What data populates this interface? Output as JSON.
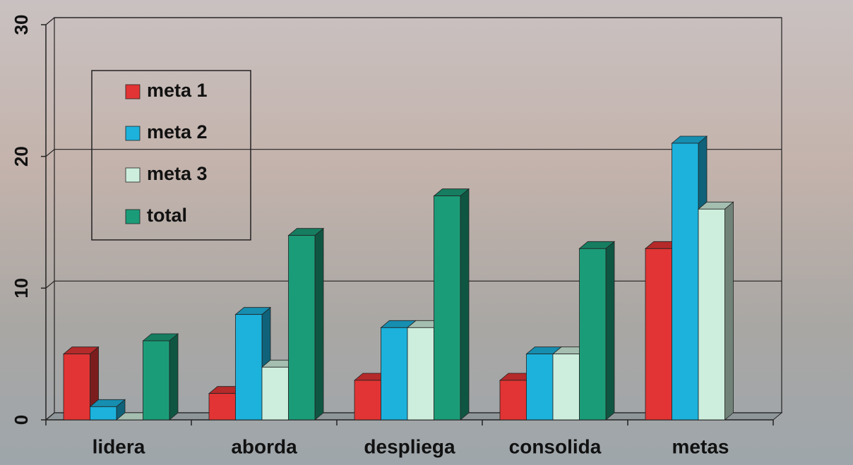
{
  "chart_data": {
    "type": "bar3d",
    "categories": [
      "lidera",
      "aborda",
      "despliega",
      "consolida",
      "metas"
    ],
    "series": [
      {
        "name": "meta 1",
        "color": "#e23434",
        "values": [
          5,
          2,
          3,
          3,
          13
        ]
      },
      {
        "name": "meta 2",
        "color": "#1cb2dc",
        "values": [
          1,
          8,
          7,
          5,
          21
        ]
      },
      {
        "name": "meta 3",
        "color": "#cdeedc",
        "values": [
          0,
          4,
          7,
          5,
          16
        ]
      },
      {
        "name": "total",
        "color": "#1b9c78",
        "values": [
          6,
          14,
          17,
          13,
          null
        ]
      }
    ],
    "ylim": [
      0,
      30
    ],
    "yticks": [
      0,
      10,
      20,
      30
    ],
    "grid": true
  }
}
